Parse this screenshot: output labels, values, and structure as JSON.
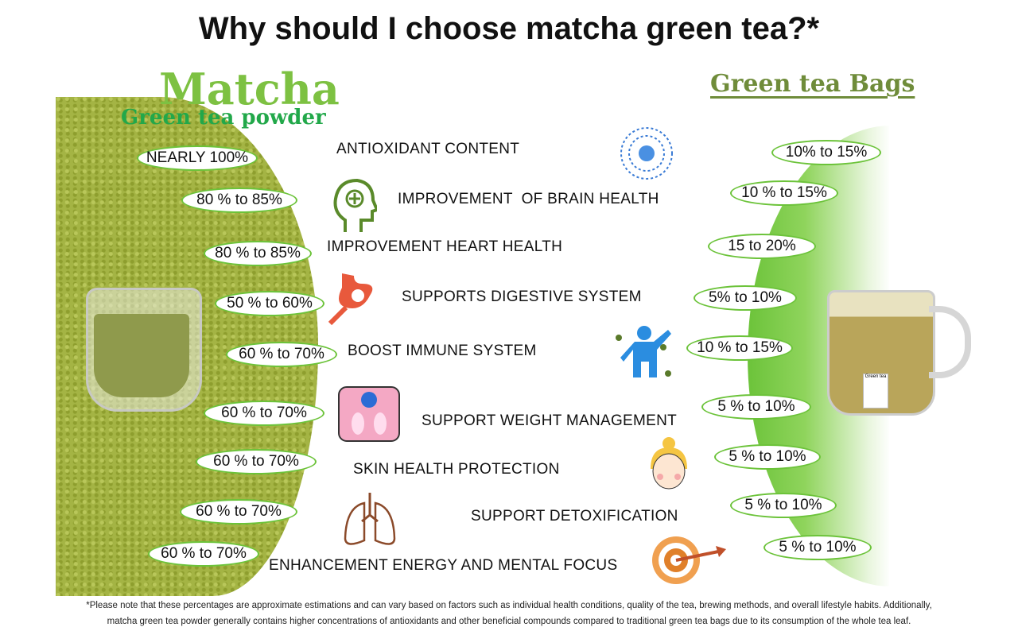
{
  "title": "Why should I choose matcha green tea?*",
  "matcha": {
    "title": "Matcha",
    "subtitle": "Green tea powder"
  },
  "bags": {
    "title": "Green tea Bags",
    "tag_text": "Green tea"
  },
  "colors": {
    "oval_border": "#6cc33a",
    "matcha_title": "#7dc142",
    "matcha_subtitle": "#22a84a",
    "bags_title": "#6f8c3a"
  },
  "rows": [
    {
      "benefit": "ANTIOXIDANT CONTENT",
      "matcha": "NEARLY 100%",
      "bags": "10% to 15%",
      "icon": "atom-icon"
    },
    {
      "benefit": "IMPROVEMENT  OF BRAIN HEALTH",
      "matcha": "80 % to 85%",
      "bags": "10 % to 15%",
      "icon": "brain-head-icon"
    },
    {
      "benefit": "IMPROVEMENT HEART HEALTH",
      "matcha": "80 % to 85%",
      "bags": "15 to 20%",
      "icon": ""
    },
    {
      "benefit": "SUPPORTS DIGESTIVE SYSTEM",
      "matcha": "50 % to 60%",
      "bags": "5% to 10%",
      "icon": "stomach-icon"
    },
    {
      "benefit": "BOOST IMMUNE SYSTEM",
      "matcha": "60 % to 70%",
      "bags": "10 % to 15%",
      "icon": "immune-body-icon"
    },
    {
      "benefit": "SUPPORT WEIGHT MANAGEMENT",
      "matcha": "60 % to 70%",
      "bags": "5 % to 10%",
      "icon": "scale-icon"
    },
    {
      "benefit": "SKIN HEALTH PROTECTION",
      "matcha": "60 % to 70%",
      "bags": "5 % to 10%",
      "icon": "face-icon"
    },
    {
      "benefit": "SUPPORT DETOXIFICATION",
      "matcha": "60 % to 70%",
      "bags": "5 % to 10%",
      "icon": "lungs-icon"
    },
    {
      "benefit": "ENHANCEMENT ENERGY AND MENTAL FOCUS",
      "matcha": "60 % to 70%",
      "bags": "5 % to 10%",
      "icon": "target-icon"
    }
  ],
  "footnote": {
    "line1": "*Please note that these percentages are approximate estimations and can vary based on factors such as individual health conditions, quality of the tea, brewing methods, and overall lifestyle habits. Additionally,",
    "line2": "matcha green tea powder generally contains higher concentrations of antioxidants and other beneficial compounds compared to traditional green tea bags due to its consumption of the whole tea leaf."
  }
}
